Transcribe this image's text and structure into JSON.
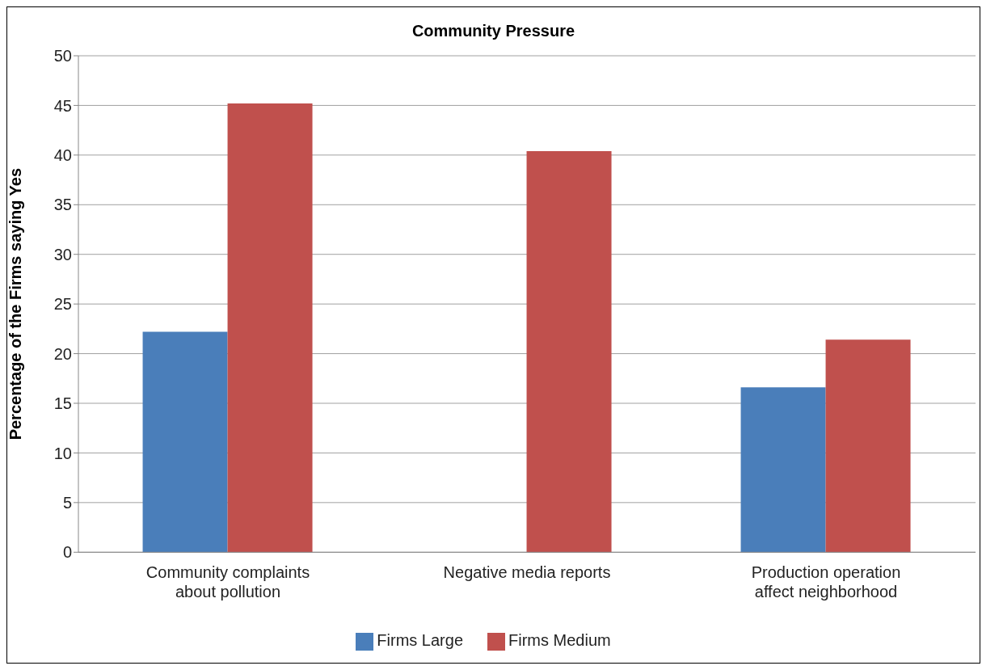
{
  "chart_data": {
    "type": "bar",
    "title": "Community Pressure",
    "ylabel": "Percentage of the Firms saying Yes",
    "categories": [
      "Community complaints\nabout pollution",
      "Negative media reports",
      "Production operation\naffect neighborhood"
    ],
    "series": [
      {
        "name": "Firms Large",
        "color": "#4a7eba",
        "values": [
          22.2,
          0,
          16.6
        ]
      },
      {
        "name": "Firms Medium",
        "color": "#c0504d",
        "values": [
          45.2,
          40.4,
          21.4
        ]
      }
    ],
    "ylim": [
      0,
      50
    ],
    "yticks": [
      0,
      5,
      10,
      15,
      20,
      25,
      30,
      35,
      40,
      45,
      50
    ],
    "grid": "y",
    "legend": "bottom"
  }
}
